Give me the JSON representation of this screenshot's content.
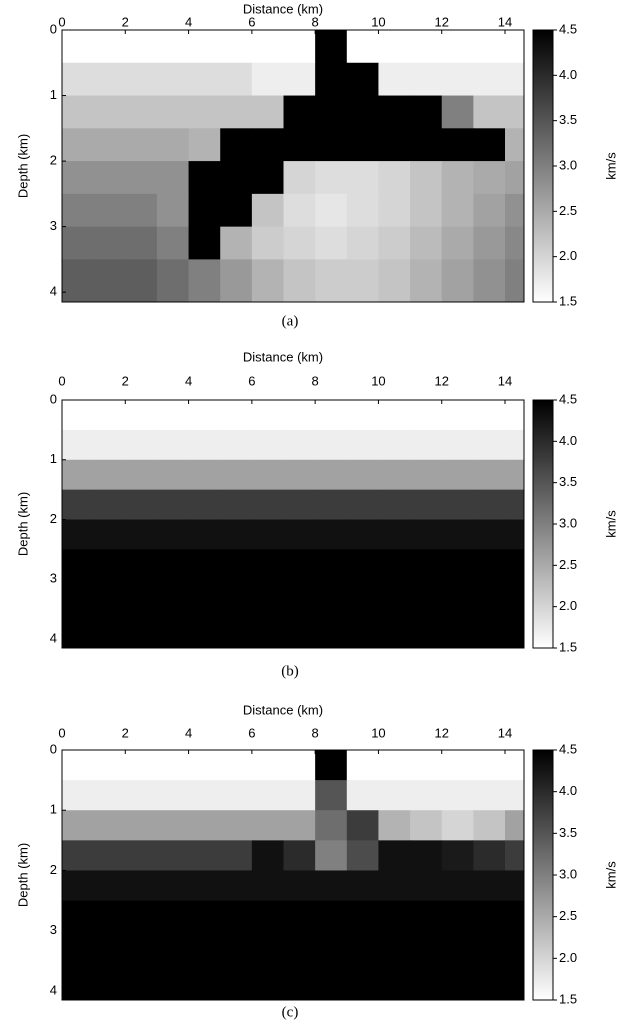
{
  "chart_data": [
    {
      "type": "heatmap",
      "xlabel": "Distance (km)",
      "ylabel": "Depth (km)",
      "caption": "(a)",
      "colorbar_label": "km/s",
      "colormap": [
        "#ffffff",
        "#000000"
      ],
      "zlim": [
        1.5,
        4.5
      ],
      "colorbar_ticks": [
        1.5,
        {
          "value": 2,
          "label": "2.0"
        },
        2.5,
        {
          "value": 3,
          "label": "3.0"
        },
        3.5,
        {
          "value": 4,
          "label": "4.0"
        },
        4.5
      ],
      "xlim": [
        0,
        14.6
      ],
      "ylim": [
        0,
        4.15
      ],
      "xticks": [
        0,
        2,
        4,
        6,
        8,
        10,
        12,
        14
      ],
      "yticks": [
        0,
        1,
        2,
        3,
        4
      ],
      "x": [
        0.5,
        1.5,
        2.5,
        3.5,
        4.5,
        5.5,
        6.5,
        7.5,
        8.5,
        9.5,
        10.5,
        11.5,
        12.5,
        13.5,
        14.5
      ],
      "y": [
        0.25,
        0.75,
        1.25,
        1.75,
        2.25,
        2.75,
        3.25,
        3.75
      ],
      "z": [
        [
          1.5,
          1.5,
          1.5,
          1.5,
          1.5,
          1.5,
          1.5,
          1.5,
          4.5,
          1.5,
          1.5,
          1.5,
          1.5,
          1.5,
          1.5
        ],
        [
          1.9,
          1.9,
          1.9,
          1.9,
          1.9,
          1.9,
          1.7,
          1.7,
          4.5,
          4.5,
          1.7,
          1.7,
          1.7,
          1.7,
          1.7
        ],
        [
          2.2,
          2.2,
          2.2,
          2.2,
          2.2,
          2.2,
          2.2,
          4.5,
          4.5,
          4.5,
          4.5,
          4.5,
          3.0,
          2.2,
          2.2
        ],
        [
          2.5,
          2.5,
          2.5,
          2.5,
          2.4,
          4.5,
          4.5,
          4.5,
          4.5,
          4.5,
          4.5,
          4.5,
          4.5,
          4.5,
          2.4
        ],
        [
          2.8,
          2.8,
          2.8,
          2.8,
          4.5,
          4.5,
          4.5,
          2.0,
          1.9,
          1.9,
          2.0,
          2.2,
          2.4,
          2.5,
          2.6
        ],
        [
          3.0,
          3.0,
          3.0,
          2.8,
          4.5,
          4.5,
          2.2,
          1.9,
          1.8,
          1.9,
          2.0,
          2.2,
          2.4,
          2.6,
          2.8
        ],
        [
          3.2,
          3.2,
          3.2,
          3.0,
          4.5,
          2.4,
          2.1,
          2.0,
          1.9,
          2.0,
          2.1,
          2.3,
          2.5,
          2.7,
          2.9
        ],
        [
          3.4,
          3.4,
          3.4,
          3.2,
          3.0,
          2.7,
          2.4,
          2.2,
          2.1,
          2.1,
          2.2,
          2.4,
          2.6,
          2.8,
          3.0
        ]
      ]
    },
    {
      "type": "heatmap",
      "xlabel": "Distance (km)",
      "ylabel": "Depth (km)",
      "caption": "(b)",
      "colorbar_label": "km/s",
      "colormap": [
        "#ffffff",
        "#000000"
      ],
      "zlim": [
        1.5,
        4.5
      ],
      "colorbar_ticks": [
        1.5,
        {
          "value": 2,
          "label": "2.0"
        },
        2.5,
        {
          "value": 3,
          "label": "3.0"
        },
        3.5,
        {
          "value": 4,
          "label": "4.0"
        },
        4.5
      ],
      "xlim": [
        0,
        14.6
      ],
      "ylim": [
        0,
        4.15
      ],
      "xticks": [
        0,
        2,
        4,
        6,
        8,
        10,
        12,
        14
      ],
      "yticks": [
        0,
        1,
        2,
        3,
        4
      ],
      "x": [
        0.5,
        1.5,
        2.5,
        3.5,
        4.5,
        5.5,
        6.5,
        7.5,
        8.5,
        9.5,
        10.5,
        11.5,
        12.5,
        13.5,
        14.5
      ],
      "y": [
        0.25,
        0.75,
        1.25,
        1.75,
        2.25,
        2.75,
        3.25,
        3.75
      ],
      "z": [
        [
          1.5,
          1.5,
          1.5,
          1.5,
          1.5,
          1.5,
          1.5,
          1.5,
          1.5,
          1.5,
          1.5,
          1.5,
          1.5,
          1.5,
          1.5
        ],
        [
          1.7,
          1.7,
          1.7,
          1.7,
          1.7,
          1.7,
          1.7,
          1.7,
          1.7,
          1.7,
          1.7,
          1.7,
          1.7,
          1.7,
          1.7
        ],
        [
          2.6,
          2.6,
          2.6,
          2.6,
          2.6,
          2.6,
          2.6,
          2.6,
          2.6,
          2.6,
          2.6,
          2.6,
          2.6,
          2.6,
          2.6
        ],
        [
          3.8,
          3.8,
          3.8,
          3.8,
          3.8,
          3.8,
          3.8,
          3.8,
          3.8,
          3.8,
          3.8,
          3.8,
          3.8,
          3.8,
          3.8
        ],
        [
          4.3,
          4.3,
          4.3,
          4.3,
          4.3,
          4.3,
          4.3,
          4.3,
          4.3,
          4.3,
          4.3,
          4.3,
          4.3,
          4.3,
          4.3
        ],
        [
          4.5,
          4.5,
          4.5,
          4.5,
          4.5,
          4.5,
          4.5,
          4.5,
          4.5,
          4.5,
          4.5,
          4.5,
          4.5,
          4.5,
          4.5
        ],
        [
          4.5,
          4.5,
          4.5,
          4.5,
          4.5,
          4.5,
          4.5,
          4.5,
          4.5,
          4.5,
          4.5,
          4.5,
          4.5,
          4.5,
          4.5
        ],
        [
          4.5,
          4.5,
          4.5,
          4.5,
          4.5,
          4.5,
          4.5,
          4.5,
          4.5,
          4.5,
          4.5,
          4.5,
          4.5,
          4.5,
          4.5
        ]
      ]
    },
    {
      "type": "heatmap",
      "xlabel": "Distance (km)",
      "ylabel": "Depth (km)",
      "caption": "(c)",
      "colorbar_label": "km/s",
      "colormap": [
        "#ffffff",
        "#000000"
      ],
      "zlim": [
        1.5,
        4.5
      ],
      "colorbar_ticks": [
        1.5,
        {
          "value": 2,
          "label": "2.0"
        },
        2.5,
        {
          "value": 3,
          "label": "3.0"
        },
        3.5,
        {
          "value": 4,
          "label": "4.0"
        },
        4.5
      ],
      "xlim": [
        0,
        14.6
      ],
      "ylim": [
        0,
        4.15
      ],
      "xticks": [
        0,
        2,
        4,
        6,
        8,
        10,
        12,
        14
      ],
      "yticks": [
        0,
        1,
        2,
        3,
        4
      ],
      "x": [
        0.5,
        1.5,
        2.5,
        3.5,
        4.5,
        5.5,
        6.5,
        7.5,
        8.5,
        9.5,
        10.5,
        11.5,
        12.5,
        13.5,
        14.5
      ],
      "y": [
        0.25,
        0.75,
        1.25,
        1.75,
        2.25,
        2.75,
        3.25,
        3.75
      ],
      "z": [
        [
          1.5,
          1.5,
          1.5,
          1.5,
          1.5,
          1.5,
          1.5,
          1.5,
          4.5,
          1.5,
          1.5,
          1.5,
          1.5,
          1.5,
          1.5
        ],
        [
          1.7,
          1.7,
          1.7,
          1.7,
          1.7,
          1.7,
          1.7,
          1.7,
          3.5,
          1.7,
          1.7,
          1.7,
          1.7,
          1.7,
          1.7
        ],
        [
          2.6,
          2.6,
          2.6,
          2.6,
          2.6,
          2.6,
          2.6,
          2.6,
          3.2,
          3.8,
          2.4,
          2.2,
          2.0,
          2.2,
          2.6
        ],
        [
          3.8,
          3.8,
          3.8,
          3.8,
          3.8,
          3.8,
          4.3,
          4.0,
          3.0,
          3.6,
          4.3,
          4.3,
          4.2,
          4.0,
          3.8
        ],
        [
          4.3,
          4.3,
          4.3,
          4.3,
          4.3,
          4.3,
          4.3,
          4.3,
          4.3,
          4.3,
          4.3,
          4.3,
          4.3,
          4.3,
          4.3
        ],
        [
          4.5,
          4.5,
          4.5,
          4.5,
          4.5,
          4.5,
          4.5,
          4.5,
          4.5,
          4.5,
          4.5,
          4.5,
          4.5,
          4.5,
          4.5
        ],
        [
          4.5,
          4.5,
          4.5,
          4.5,
          4.5,
          4.5,
          4.5,
          4.5,
          4.5,
          4.5,
          4.5,
          4.5,
          4.5,
          4.5,
          4.5
        ],
        [
          4.5,
          4.5,
          4.5,
          4.5,
          4.5,
          4.5,
          4.5,
          4.5,
          4.5,
          4.5,
          4.5,
          4.5,
          4.5,
          4.5,
          4.5
        ]
      ]
    }
  ]
}
